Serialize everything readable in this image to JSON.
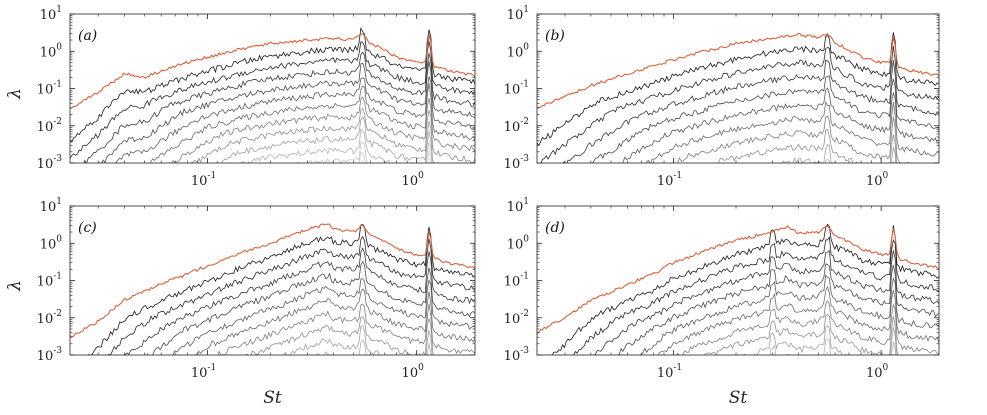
{
  "chart_data": [
    {
      "type": "line",
      "panel_label": "(a)",
      "xscale": "log",
      "yscale": "log",
      "xlim": [
        0.022,
        1.9
      ],
      "ylim": [
        0.001,
        10
      ],
      "xlabel": "",
      "ylabel": "λ",
      "ytick_bases": [
        "10",
        "10",
        "10",
        "10",
        "10"
      ],
      "ytick_exps": [
        "-3",
        "-2",
        "-1",
        "0",
        "1"
      ],
      "xtick_bases": [
        "10",
        "10"
      ],
      "xtick_exps": [
        "-1",
        "0"
      ],
      "n_modes": 14,
      "leading_mode_color": "#d9633e",
      "leading_mode": {
        "x": [
          0.022,
          0.03,
          0.04,
          0.05,
          0.06,
          0.08,
          0.1,
          0.15,
          0.2,
          0.3,
          0.4,
          0.5,
          0.55,
          0.6,
          0.7,
          0.8,
          1.0,
          1.1,
          1.15,
          1.2,
          1.4,
          1.9
        ],
        "y": [
          0.03,
          0.08,
          0.25,
          0.2,
          0.3,
          0.5,
          0.7,
          1.2,
          1.6,
          2.0,
          2.2,
          2.0,
          3.2,
          1.6,
          1.1,
          0.7,
          0.5,
          0.5,
          3.5,
          0.4,
          0.3,
          0.22
        ]
      },
      "mode_decay": 0.5,
      "peaks_st": [
        0.55,
        1.15
      ]
    },
    {
      "type": "line",
      "panel_label": "(b)",
      "xscale": "log",
      "yscale": "log",
      "xlim": [
        0.022,
        1.9
      ],
      "ylim": [
        0.001,
        10
      ],
      "xlabel": "",
      "ylabel": "",
      "ytick_bases": [
        "10",
        "10",
        "10",
        "10",
        "10"
      ],
      "ytick_exps": [
        "-3",
        "-2",
        "-1",
        "0",
        "1"
      ],
      "xtick_bases": [
        "10",
        "10"
      ],
      "xtick_exps": [
        "-1",
        "0"
      ],
      "n_modes": 14,
      "leading_mode_color": "#d9633e",
      "leading_mode": {
        "x": [
          0.022,
          0.03,
          0.04,
          0.05,
          0.06,
          0.08,
          0.1,
          0.15,
          0.2,
          0.3,
          0.4,
          0.5,
          0.55,
          0.6,
          0.7,
          0.8,
          1.0,
          1.1,
          1.15,
          1.2,
          1.4,
          1.9
        ],
        "y": [
          0.03,
          0.06,
          0.12,
          0.18,
          0.25,
          0.4,
          0.6,
          1.1,
          1.6,
          2.3,
          2.8,
          2.3,
          3.0,
          1.7,
          1.1,
          0.7,
          0.5,
          0.5,
          3.0,
          0.4,
          0.3,
          0.22
        ]
      },
      "mode_decay": 0.42,
      "peaks_st": [
        0.55,
        1.15
      ]
    },
    {
      "type": "line",
      "panel_label": "(c)",
      "xscale": "log",
      "yscale": "log",
      "xlim": [
        0.022,
        1.9
      ],
      "ylim": [
        0.001,
        10
      ],
      "xlabel": "St",
      "ylabel": "λ",
      "ytick_bases": [
        "10",
        "10",
        "10",
        "10",
        "10"
      ],
      "ytick_exps": [
        "-3",
        "-2",
        "-1",
        "0",
        "1"
      ],
      "xtick_bases": [
        "10",
        "10"
      ],
      "xtick_exps": [
        "-1",
        "0"
      ],
      "n_modes": 14,
      "leading_mode_color": "#d9633e",
      "leading_mode": {
        "x": [
          0.022,
          0.03,
          0.04,
          0.05,
          0.06,
          0.08,
          0.1,
          0.15,
          0.2,
          0.25,
          0.3,
          0.35,
          0.38,
          0.4,
          0.5,
          0.55,
          0.6,
          0.7,
          0.8,
          1.0,
          1.1,
          1.15,
          1.2,
          1.4,
          1.9
        ],
        "y": [
          0.003,
          0.008,
          0.03,
          0.05,
          0.08,
          0.15,
          0.25,
          0.6,
          1.0,
          1.6,
          2.3,
          3.0,
          3.3,
          2.4,
          2.0,
          3.0,
          1.6,
          1.1,
          0.7,
          0.5,
          0.5,
          2.6,
          0.4,
          0.3,
          0.22
        ]
      },
      "mode_decay": 0.45,
      "peaks_st": [
        0.55,
        1.15
      ]
    },
    {
      "type": "line",
      "panel_label": "(d)",
      "xscale": "log",
      "yscale": "log",
      "xlim": [
        0.022,
        1.9
      ],
      "ylim": [
        0.001,
        10
      ],
      "xlabel": "St",
      "ylabel": "",
      "ytick_bases": [
        "10",
        "10",
        "10",
        "10",
        "10"
      ],
      "ytick_exps": [
        "-3",
        "-2",
        "-1",
        "0",
        "1"
      ],
      "xtick_bases": [
        "10",
        "10"
      ],
      "xtick_exps": [
        "-1",
        "0"
      ],
      "n_modes": 14,
      "leading_mode_color": "#d9633e",
      "leading_mode": {
        "x": [
          0.022,
          0.03,
          0.04,
          0.05,
          0.06,
          0.08,
          0.1,
          0.15,
          0.2,
          0.3,
          0.35,
          0.4,
          0.5,
          0.55,
          0.6,
          0.7,
          0.8,
          1.0,
          1.1,
          1.15,
          1.2,
          1.4,
          1.9
        ],
        "y": [
          0.004,
          0.01,
          0.03,
          0.05,
          0.08,
          0.15,
          0.3,
          0.7,
          1.2,
          2.0,
          2.8,
          1.8,
          2.0,
          3.0,
          1.6,
          1.1,
          0.7,
          0.5,
          0.5,
          3.2,
          0.4,
          0.3,
          0.22
        ]
      },
      "mode_decay": 0.45,
      "peaks_st": [
        0.3,
        0.55,
        1.15
      ]
    }
  ]
}
